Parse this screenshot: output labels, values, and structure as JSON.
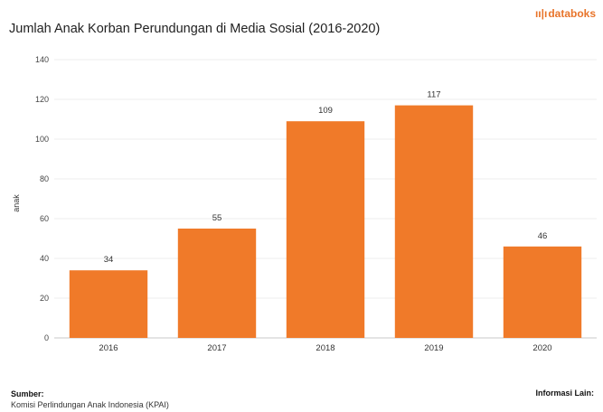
{
  "header": {
    "title": "Jumlah Anak Korban Perundungan di Media Sosial (2016-2020)",
    "brand": "databoks"
  },
  "chart_data": {
    "type": "bar",
    "categories": [
      "2016",
      "2017",
      "2018",
      "2019",
      "2020"
    ],
    "values": [
      34,
      55,
      109,
      117,
      46
    ],
    "data_labels": [
      "34",
      "55",
      "109",
      "117",
      "46"
    ],
    "title": "Jumlah Anak Korban Perundungan di Media Sosial (2016-2020)",
    "xlabel": "",
    "ylabel": "anak",
    "ylim": [
      0,
      140
    ],
    "yticks": [
      0,
      20,
      40,
      60,
      80,
      100,
      120,
      140
    ],
    "grid": true,
    "legend": "none",
    "bar_color": "#f07a29"
  },
  "footer": {
    "source_label": "Sumber:",
    "source_text": "Komisi Perlindungan Anak Indonesia (KPAI)",
    "info_label": "Informasi Lain:"
  }
}
